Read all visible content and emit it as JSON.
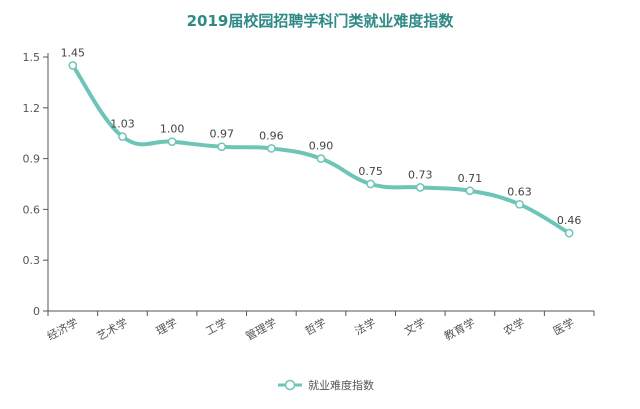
{
  "chart_data": {
    "type": "line",
    "title": "2019届校园招聘学科门类就业难度指数",
    "xlabel": "",
    "ylabel": "",
    "categories": [
      "经济学",
      "艺术学",
      "理学",
      "工学",
      "管理学",
      "哲学",
      "法学",
      "文学",
      "教育学",
      "农学",
      "医学"
    ],
    "series": [
      {
        "name": "就业难度指数",
        "values": [
          1.45,
          1.03,
          1.0,
          0.97,
          0.96,
          0.9,
          0.75,
          0.73,
          0.71,
          0.63,
          0.46
        ],
        "labels": [
          "1.45",
          "1.03",
          "1.00",
          "0.97",
          "0.96",
          "0.90",
          "0.75",
          "0.73",
          "0.71",
          "0.63",
          "0.46"
        ]
      }
    ],
    "ylim": [
      0,
      1.5
    ],
    "yticks": [
      0,
      0.3,
      0.6,
      0.9,
      1.2,
      1.5
    ],
    "ytick_labels": [
      "0",
      "0.3",
      "0.6",
      "0.9",
      "1.2",
      "1.5"
    ],
    "smooth": true,
    "grid": false,
    "legend_position": "bottom-center",
    "colors": {
      "line": "#6dc5b7",
      "title": "#2f8a86",
      "axis": "#555555"
    }
  }
}
